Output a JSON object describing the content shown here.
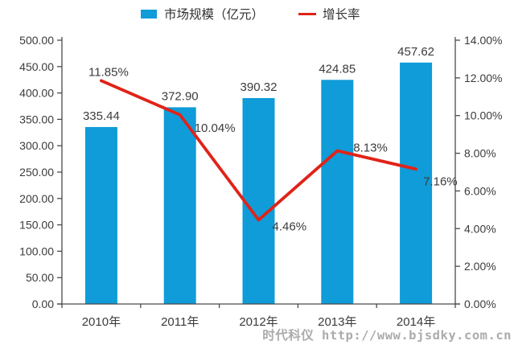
{
  "legend": {
    "bar_label": "市场规模（亿元）",
    "line_label": "增长率"
  },
  "watermark": "时代科仪 http://www.bjsdky.com.cn",
  "colors": {
    "bar": "#0f9cd8",
    "line": "#e02318",
    "axis": "#4a4a4a",
    "text": "#3b3b3b",
    "watermark": "#ababab"
  },
  "chart_data": {
    "type": "bar",
    "subtype": "bar+line combo",
    "title": "",
    "categories": [
      "2010年",
      "2011年",
      "2012年",
      "2013年",
      "2014年"
    ],
    "series": [
      {
        "name": "市场规模（亿元）",
        "type": "bar",
        "axis": "left",
        "values": [
          335.44,
          372.9,
          390.32,
          424.85,
          457.62
        ],
        "labels": [
          "335.44",
          "372.90",
          "390.32",
          "424.85",
          "457.62"
        ]
      },
      {
        "name": "增长率",
        "type": "line",
        "axis": "right",
        "values": [
          11.85,
          10.04,
          4.46,
          8.13,
          7.16
        ],
        "labels": [
          "11.85%",
          "10.04%",
          "4.46%",
          "8.13%",
          "7.16%"
        ]
      }
    ],
    "left_axis": {
      "min": 0,
      "max": 500,
      "step": 50,
      "tick_labels": [
        "0.00",
        "50.00",
        "100.00",
        "150.00",
        "200.00",
        "250.00",
        "300.00",
        "350.00",
        "400.00",
        "450.00",
        "500.00"
      ]
    },
    "right_axis": {
      "min": 0,
      "max": 14,
      "step": 2,
      "tick_labels": [
        "0.00%",
        "2.00%",
        "4.00%",
        "6.00%",
        "8.00%",
        "10.00%",
        "12.00%",
        "14.00%"
      ]
    },
    "grid": false,
    "legend_position": "top"
  }
}
